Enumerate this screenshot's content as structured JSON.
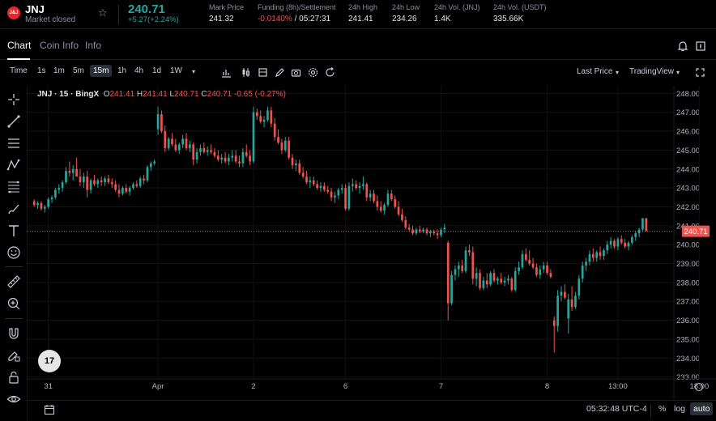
{
  "header": {
    "logo_text": "J&J",
    "symbol": "JNJ",
    "market_state": "Market closed",
    "price": "240.71",
    "change": "+5.27(+2.24%)",
    "stats": [
      {
        "label": "Mark Price",
        "value": "241.32",
        "value2": ""
      },
      {
        "label": "Funding (8h)/Settlement",
        "value": "-0.0140%",
        "value2": "/ 05:27:31"
      },
      {
        "label": "24h High",
        "value": "241.41",
        "value2": ""
      },
      {
        "label": "24h Low",
        "value": "234.26",
        "value2": ""
      },
      {
        "label": "24h Vol. (JNJ)",
        "value": "1.4K",
        "value2": ""
      },
      {
        "label": "24h Vol. (USDT)",
        "value": "335.66K",
        "value2": ""
      }
    ]
  },
  "tabs": [
    "Chart",
    "Coin Info",
    "Info"
  ],
  "toolbar": {
    "intervals": [
      "Time",
      "1s",
      "1m",
      "5m",
      "15m",
      "1h",
      "4h",
      "1d",
      "1W"
    ],
    "selected_interval": "15m",
    "right": [
      "Last Price",
      "TradingView"
    ]
  },
  "legend": {
    "title": "JNJ · 15 · BingX",
    "o": "241.41",
    "h": "241.41",
    "l": "240.71",
    "c": "240.71",
    "chg": "-0.65 (-0.27%)"
  },
  "tv_logo": "17",
  "bottom": {
    "time": "05:32:48 UTC-4",
    "percent": "%",
    "log": "log",
    "auto": "auto"
  },
  "chart_data": {
    "type": "candlestick",
    "y_ticks": [
      "248.00",
      "247.00",
      "246.00",
      "245.00",
      "244.00",
      "243.00",
      "242.00",
      "241.00",
      "240.00",
      "239.00",
      "238.00",
      "237.00",
      "236.00",
      "235.00",
      "234.00",
      "233.00"
    ],
    "ylim": [
      232.9,
      248.4
    ],
    "x_ticks": [
      "31",
      "Apr",
      "2",
      "6",
      "7",
      "8",
      "13:00",
      "18:00"
    ],
    "last_price": "240.71",
    "last_price_value": 240.71,
    "colors": {
      "up": "#26a69a",
      "down": "#ef5350"
    },
    "candles": [
      [
        242.3,
        242.4,
        242.0,
        242.1
      ],
      [
        242.1,
        242.3,
        241.9,
        242.2
      ],
      [
        242.2,
        242.3,
        241.8,
        241.9
      ],
      [
        241.9,
        242.1,
        241.7,
        242.0
      ],
      [
        242.0,
        242.5,
        241.9,
        242.4
      ],
      [
        242.4,
        242.6,
        242.2,
        242.5
      ],
      [
        242.5,
        243.0,
        242.4,
        242.9
      ],
      [
        242.9,
        243.2,
        242.7,
        243.0
      ],
      [
        243.0,
        243.4,
        242.8,
        243.3
      ],
      [
        243.3,
        244.1,
        243.2,
        243.9
      ],
      [
        243.9,
        244.4,
        243.6,
        243.8
      ],
      [
        243.8,
        244.2,
        243.4,
        244.0
      ],
      [
        244.0,
        244.6,
        243.6,
        243.6
      ],
      [
        243.6,
        244.0,
        243.1,
        243.3
      ],
      [
        243.3,
        243.8,
        243.0,
        243.6
      ],
      [
        243.6,
        243.9,
        242.5,
        242.9
      ],
      [
        242.9,
        243.5,
        242.7,
        243.4
      ],
      [
        243.4,
        243.7,
        243.1,
        243.2
      ],
      [
        243.2,
        243.5,
        243.0,
        243.4
      ],
      [
        243.4,
        243.6,
        243.1,
        243.3
      ],
      [
        243.3,
        243.6,
        243.1,
        243.5
      ],
      [
        243.5,
        243.7,
        243.2,
        243.3
      ],
      [
        243.3,
        243.5,
        243.0,
        243.2
      ],
      [
        243.2,
        243.4,
        242.8,
        242.9
      ],
      [
        242.9,
        243.2,
        242.5,
        242.7
      ],
      [
        242.7,
        243.1,
        242.6,
        243.0
      ],
      [
        243.0,
        243.2,
        242.7,
        242.8
      ],
      [
        242.8,
        243.1,
        242.6,
        243.0
      ],
      [
        243.0,
        243.3,
        242.9,
        243.2
      ],
      [
        243.2,
        243.4,
        243.0,
        243.1
      ],
      [
        243.1,
        243.6,
        243.0,
        243.5
      ],
      [
        243.5,
        243.7,
        243.2,
        243.4
      ],
      [
        243.4,
        244.2,
        243.3,
        244.1
      ],
      [
        244.1,
        244.4,
        243.9,
        244.3
      ],
      [
        244.3,
        244.5,
        244.2,
        244.4
      ],
      [
        246.1,
        247.3,
        245.8,
        246.9
      ],
      [
        246.9,
        247.1,
        245.9,
        246.0
      ],
      [
        246.0,
        246.3,
        244.9,
        245.1
      ],
      [
        245.1,
        245.7,
        245.0,
        245.6
      ],
      [
        245.6,
        245.9,
        245.2,
        245.3
      ],
      [
        245.3,
        245.6,
        244.9,
        245.0
      ],
      [
        245.0,
        245.4,
        244.8,
        245.3
      ],
      [
        245.3,
        245.8,
        245.1,
        245.6
      ],
      [
        245.6,
        245.9,
        245.0,
        245.1
      ],
      [
        245.1,
        245.5,
        244.9,
        245.3
      ],
      [
        245.3,
        245.4,
        244.2,
        244.5
      ],
      [
        244.5,
        245.1,
        244.3,
        244.9
      ],
      [
        244.9,
        245.3,
        244.7,
        245.1
      ],
      [
        245.1,
        245.4,
        244.8,
        244.9
      ],
      [
        244.9,
        245.2,
        244.7,
        245.0
      ],
      [
        245.0,
        245.3,
        244.8,
        244.9
      ],
      [
        244.9,
        245.1,
        244.6,
        244.7
      ],
      [
        244.7,
        245.0,
        244.4,
        244.5
      ],
      [
        244.5,
        244.8,
        244.3,
        244.6
      ],
      [
        244.6,
        244.9,
        244.3,
        244.4
      ],
      [
        244.4,
        244.8,
        244.2,
        244.6
      ],
      [
        244.6,
        245.0,
        244.4,
        244.7
      ],
      [
        244.7,
        245.0,
        244.3,
        244.4
      ],
      [
        244.4,
        244.7,
        244.1,
        244.3
      ],
      [
        244.3,
        245.1,
        244.1,
        244.9
      ],
      [
        244.9,
        245.3,
        244.6,
        244.7
      ],
      [
        244.7,
        245.0,
        244.2,
        244.4
      ],
      [
        244.4,
        247.3,
        244.3,
        247.0
      ],
      [
        247.0,
        247.2,
        246.6,
        246.8
      ],
      [
        246.8,
        247.1,
        246.4,
        246.5
      ],
      [
        246.5,
        246.8,
        246.2,
        246.6
      ],
      [
        246.6,
        247.3,
        246.5,
        247.1
      ],
      [
        247.1,
        247.3,
        246.2,
        246.4
      ],
      [
        246.4,
        246.7,
        245.5,
        245.7
      ],
      [
        245.7,
        246.1,
        245.3,
        245.4
      ],
      [
        245.4,
        245.6,
        244.8,
        245.0
      ],
      [
        245.0,
        245.7,
        244.9,
        245.5
      ],
      [
        245.5,
        245.7,
        244.5,
        244.6
      ],
      [
        244.6,
        244.8,
        244.0,
        244.2
      ],
      [
        244.2,
        244.5,
        243.9,
        244.3
      ],
      [
        244.3,
        244.5,
        243.7,
        243.8
      ],
      [
        243.8,
        244.1,
        243.5,
        243.6
      ],
      [
        243.6,
        243.9,
        243.2,
        243.3
      ],
      [
        243.3,
        243.6,
        243.0,
        243.4
      ],
      [
        243.4,
        243.6,
        243.1,
        243.2
      ],
      [
        243.2,
        243.4,
        242.9,
        243.0
      ],
      [
        243.0,
        243.3,
        242.8,
        243.1
      ],
      [
        243.1,
        243.3,
        242.8,
        242.9
      ],
      [
        242.9,
        243.1,
        242.7,
        242.8
      ],
      [
        242.8,
        243.0,
        242.3,
        242.5
      ],
      [
        242.5,
        242.8,
        242.2,
        242.6
      ],
      [
        242.6,
        243.0,
        242.4,
        242.9
      ],
      [
        242.9,
        243.2,
        242.7,
        243.0
      ],
      [
        243.0,
        243.2,
        241.8,
        241.9
      ],
      [
        241.9,
        243.3,
        241.8,
        243.1
      ],
      [
        243.1,
        243.5,
        242.8,
        243.2
      ],
      [
        243.2,
        243.4,
        242.9,
        243.0
      ],
      [
        243.0,
        243.3,
        242.7,
        243.1
      ],
      [
        243.1,
        243.6,
        242.9,
        243.2
      ],
      [
        243.2,
        243.3,
        242.3,
        242.5
      ],
      [
        242.5,
        242.9,
        242.3,
        242.7
      ],
      [
        242.7,
        242.9,
        242.2,
        242.3
      ],
      [
        242.3,
        242.6,
        241.8,
        242.0
      ],
      [
        242.0,
        242.3,
        241.7,
        241.8
      ],
      [
        241.8,
        242.2,
        241.6,
        242.1
      ],
      [
        242.1,
        242.9,
        242.0,
        242.7
      ],
      [
        242.7,
        242.9,
        242.3,
        242.4
      ],
      [
        242.4,
        242.6,
        241.9,
        242.0
      ],
      [
        242.0,
        242.3,
        241.5,
        241.6
      ],
      [
        241.6,
        241.9,
        241.2,
        241.3
      ],
      [
        241.3,
        241.5,
        240.8,
        240.9
      ],
      [
        240.9,
        241.1,
        240.7,
        240.8
      ],
      [
        240.8,
        241.0,
        240.5,
        240.6
      ],
      [
        240.6,
        240.9,
        240.5,
        240.8
      ],
      [
        240.8,
        241.0,
        240.6,
        240.7
      ],
      [
        240.7,
        240.9,
        240.6,
        240.8
      ],
      [
        240.8,
        240.9,
        240.5,
        240.6
      ],
      [
        240.6,
        240.8,
        240.4,
        240.7
      ],
      [
        240.7,
        240.8,
        240.5,
        240.6
      ],
      [
        240.6,
        240.8,
        240.3,
        240.5
      ],
      [
        240.5,
        240.9,
        240.4,
        240.8
      ],
      [
        240.8,
        241.1,
        240.6,
        240.9
      ],
      [
        240.1,
        240.2,
        236.0,
        236.9
      ],
      [
        236.9,
        238.6,
        236.8,
        238.4
      ],
      [
        238.4,
        238.9,
        238.1,
        238.7
      ],
      [
        238.7,
        239.1,
        238.3,
        238.9
      ],
      [
        238.9,
        239.2,
        238.5,
        238.6
      ],
      [
        238.6,
        239.9,
        238.5,
        239.7
      ],
      [
        239.7,
        240.0,
        239.4,
        239.6
      ],
      [
        239.6,
        239.9,
        237.9,
        238.2
      ],
      [
        238.2,
        238.8,
        237.8,
        238.5
      ],
      [
        238.5,
        238.7,
        237.6,
        237.7
      ],
      [
        237.7,
        238.3,
        237.6,
        238.1
      ],
      [
        238.1,
        238.5,
        237.7,
        237.9
      ],
      [
        237.9,
        238.6,
        237.8,
        238.5
      ],
      [
        238.5,
        238.7,
        238.0,
        238.1
      ],
      [
        238.1,
        238.3,
        237.9,
        238.2
      ],
      [
        238.2,
        238.5,
        237.9,
        238.0
      ],
      [
        238.0,
        238.3,
        237.8,
        238.1
      ],
      [
        238.1,
        238.4,
        237.9,
        238.2
      ],
      [
        238.2,
        238.3,
        237.5,
        237.6
      ],
      [
        237.6,
        238.8,
        237.5,
        238.6
      ],
      [
        238.6,
        239.1,
        238.4,
        238.8
      ],
      [
        238.8,
        239.7,
        238.7,
        239.5
      ],
      [
        239.5,
        239.8,
        239.1,
        239.2
      ],
      [
        239.2,
        239.7,
        238.9,
        239.0
      ],
      [
        239.0,
        239.3,
        238.7,
        238.8
      ],
      [
        238.8,
        239.0,
        238.3,
        238.4
      ],
      [
        238.4,
        238.9,
        238.2,
        238.7
      ],
      [
        238.7,
        239.1,
        238.5,
        238.9
      ],
      [
        238.9,
        239.1,
        238.4,
        238.5
      ],
      [
        238.5,
        238.7,
        238.2,
        238.3
      ],
      [
        236.0,
        236.2,
        234.3,
        235.7
      ],
      [
        235.7,
        237.6,
        235.4,
        237.3
      ],
      [
        237.3,
        237.8,
        237.0,
        237.5
      ],
      [
        237.5,
        237.9,
        237.1,
        237.2
      ],
      [
        236.1,
        237.4,
        235.3,
        237.1
      ],
      [
        237.1,
        237.8,
        236.5,
        236.7
      ],
      [
        236.7,
        237.5,
        236.6,
        237.3
      ],
      [
        237.3,
        238.4,
        237.1,
        238.2
      ],
      [
        238.2,
        239.1,
        238.0,
        238.9
      ],
      [
        238.9,
        239.3,
        238.6,
        239.1
      ],
      [
        239.1,
        239.7,
        238.9,
        239.5
      ],
      [
        239.5,
        239.8,
        239.1,
        239.3
      ],
      [
        239.3,
        239.7,
        239.1,
        239.6
      ],
      [
        239.6,
        239.9,
        239.2,
        239.4
      ],
      [
        239.4,
        239.8,
        239.2,
        239.7
      ],
      [
        239.7,
        240.2,
        239.5,
        240.0
      ],
      [
        240.0,
        240.4,
        239.8,
        240.2
      ],
      [
        240.2,
        240.3,
        239.8,
        239.9
      ],
      [
        239.9,
        240.4,
        239.7,
        240.3
      ],
      [
        240.3,
        240.5,
        240.0,
        240.1
      ],
      [
        240.1,
        240.3,
        239.8,
        239.9
      ],
      [
        239.9,
        240.2,
        239.7,
        240.1
      ],
      [
        240.1,
        240.5,
        240.0,
        240.4
      ],
      [
        240.4,
        240.7,
        240.2,
        240.6
      ],
      [
        240.6,
        240.9,
        240.4,
        240.8
      ],
      [
        240.8,
        241.4,
        240.7,
        241.4
      ],
      [
        241.4,
        241.41,
        240.71,
        240.71
      ]
    ],
    "gaps": [
      35,
      62,
      115,
      145,
      149
    ]
  }
}
